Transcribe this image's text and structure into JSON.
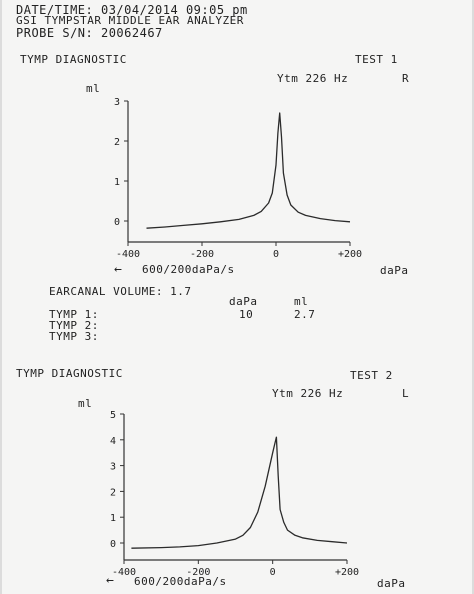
{
  "header": {
    "datetime": "DATE/TIME: 03/04/2014 09:05 pm",
    "device": "GSI TYMPSTAR MIDDLE EAR ANALYZER",
    "probe": "PROBE S/N: 20062467"
  },
  "test1": {
    "title": "TYMP DIAGNOSTIC",
    "test_label": "TEST 1",
    "probe_tone": "Ytm 226 Hz",
    "ear": "R",
    "y_unit": "ml",
    "x_unit": "daPa",
    "rate": "600/200daPa/s",
    "rate_arrow": "←"
  },
  "results": {
    "ear_canal_volume": "EARCANAL VOLUME: 1.7",
    "col_dapa": "daPa",
    "col_ml": "ml",
    "tymp1_label": "TYMP 1:",
    "tymp1_dapa": "10",
    "tymp1_ml": "2.7",
    "tymp2_label": "TYMP 2:",
    "tymp3_label": "TYMP 3:"
  },
  "test2": {
    "title": "TYMP DIAGNOSTIC",
    "test_label": "TEST 2",
    "probe_tone": "Ytm 226 Hz",
    "ear": "L",
    "y_unit": "ml",
    "x_unit": "daPa",
    "rate": "600/200daPa/s",
    "rate_arrow": "←"
  },
  "chart_data": [
    {
      "type": "line",
      "title": "TYMP DIAGNOSTIC",
      "xlabel": "daPa",
      "ylabel": "ml",
      "xlim": [
        -400,
        200
      ],
      "ylim": [
        0,
        3
      ],
      "x_ticks": [
        -400,
        -200,
        0,
        200
      ],
      "x_tick_labels": [
        "-400",
        "-200",
        "0",
        "+200"
      ],
      "y_ticks": [
        0,
        1,
        2,
        3
      ],
      "y_tick_labels": [
        "0",
        "1",
        "2",
        "3"
      ],
      "grid": false,
      "series": [
        {
          "x": [
            -350,
            -300,
            -250,
            -200,
            -150,
            -100,
            -60,
            -40,
            -20,
            -10,
            0,
            5,
            10,
            15,
            20,
            30,
            40,
            60,
            80,
            120,
            160,
            200
          ],
          "y": [
            -0.18,
            -0.15,
            -0.11,
            -0.07,
            -0.02,
            0.04,
            0.14,
            0.24,
            0.45,
            0.7,
            1.4,
            2.2,
            2.7,
            2.1,
            1.2,
            0.65,
            0.4,
            0.22,
            0.14,
            0.06,
            0.01,
            -0.02
          ]
        }
      ]
    },
    {
      "type": "line",
      "title": "TYMP DIAGNOSTIC",
      "xlabel": "daPa",
      "ylabel": "ml",
      "xlim": [
        -400,
        200
      ],
      "ylim": [
        0,
        5
      ],
      "x_ticks": [
        -400,
        -200,
        0,
        200
      ],
      "x_tick_labels": [
        "-400",
        "-200",
        "0",
        "+200"
      ],
      "y_ticks": [
        0,
        1,
        2,
        3,
        4,
        5
      ],
      "y_tick_labels": [
        "0",
        "1",
        "2",
        "3",
        "4",
        "5"
      ],
      "grid": false,
      "series": [
        {
          "x": [
            -380,
            -300,
            -250,
            -200,
            -150,
            -100,
            -80,
            -60,
            -40,
            -20,
            0,
            5,
            10,
            15,
            20,
            30,
            40,
            60,
            80,
            120,
            160,
            200
          ],
          "y": [
            -0.2,
            -0.18,
            -0.15,
            -0.1,
            0.0,
            0.15,
            0.3,
            0.6,
            1.2,
            2.2,
            3.5,
            3.8,
            4.1,
            2.6,
            1.3,
            0.8,
            0.5,
            0.3,
            0.2,
            0.1,
            0.05,
            0.0
          ]
        }
      ]
    }
  ]
}
